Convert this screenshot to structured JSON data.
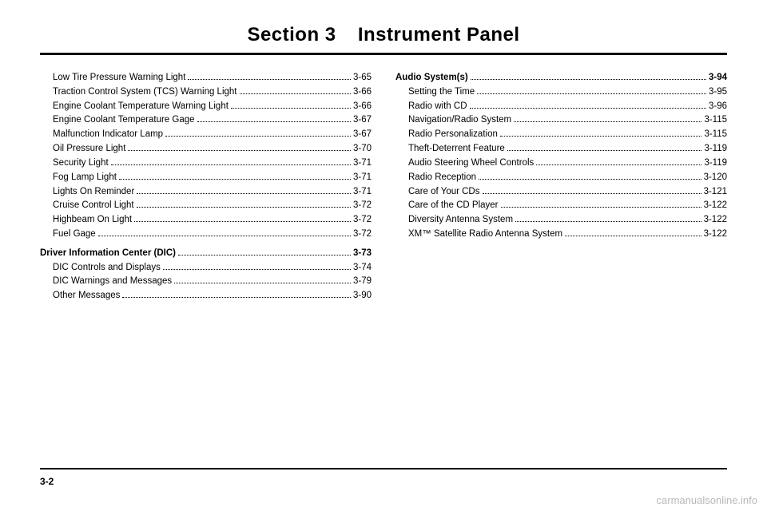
{
  "header": {
    "section_label": "Section",
    "section_number": "3",
    "title": "Instrument Panel"
  },
  "page_number": "3-2",
  "watermark": "carmanualsonline.info",
  "left_column": [
    {
      "level": 2,
      "label": "Low Tire Pressure Warning Light",
      "page": "3-65"
    },
    {
      "level": 2,
      "label": "Traction Control System (TCS) Warning Light",
      "page": "3-66"
    },
    {
      "level": 2,
      "label": "Engine Coolant Temperature Warning Light",
      "page": "3-66"
    },
    {
      "level": 2,
      "label": "Engine Coolant Temperature Gage",
      "page": "3-67"
    },
    {
      "level": 2,
      "label": "Malfunction Indicator Lamp",
      "page": "3-67"
    },
    {
      "level": 2,
      "label": "Oil Pressure Light",
      "page": "3-70"
    },
    {
      "level": 2,
      "label": "Security Light",
      "page": "3-71"
    },
    {
      "level": 2,
      "label": "Fog Lamp Light",
      "page": "3-71"
    },
    {
      "level": 2,
      "label": "Lights On Reminder",
      "page": "3-71"
    },
    {
      "level": 2,
      "label": "Cruise Control Light",
      "page": "3-72"
    },
    {
      "level": 2,
      "label": "Highbeam On Light",
      "page": "3-72"
    },
    {
      "level": 2,
      "label": "Fuel Gage",
      "page": "3-72"
    },
    {
      "gap": true
    },
    {
      "level": 1,
      "label": "Driver Information Center (DIC)",
      "page": "3-73"
    },
    {
      "level": 2,
      "label": "DIC Controls and Displays",
      "page": "3-74"
    },
    {
      "level": 2,
      "label": "DIC Warnings and Messages",
      "page": "3-79"
    },
    {
      "level": 2,
      "label": "Other Messages",
      "page": "3-90"
    }
  ],
  "right_column": [
    {
      "level": 1,
      "label": "Audio System(s)",
      "page": "3-94"
    },
    {
      "level": 2,
      "label": "Setting the Time",
      "page": "3-95"
    },
    {
      "level": 2,
      "label": "Radio with CD",
      "page": "3-96"
    },
    {
      "level": 2,
      "label": "Navigation/Radio System",
      "page": "3-115"
    },
    {
      "level": 2,
      "label": "Radio Personalization",
      "page": "3-115"
    },
    {
      "level": 2,
      "label": "Theft-Deterrent Feature",
      "page": "3-119"
    },
    {
      "level": 2,
      "label": "Audio Steering Wheel Controls",
      "page": "3-119"
    },
    {
      "level": 2,
      "label": "Radio Reception",
      "page": "3-120"
    },
    {
      "level": 2,
      "label": "Care of Your CDs",
      "page": "3-121"
    },
    {
      "level": 2,
      "label": "Care of the CD Player",
      "page": "3-122"
    },
    {
      "level": 2,
      "label": "Diversity Antenna System",
      "page": "3-122"
    },
    {
      "level": 2,
      "label": "XM™ Satellite Radio Antenna System",
      "page": "3-122"
    }
  ]
}
